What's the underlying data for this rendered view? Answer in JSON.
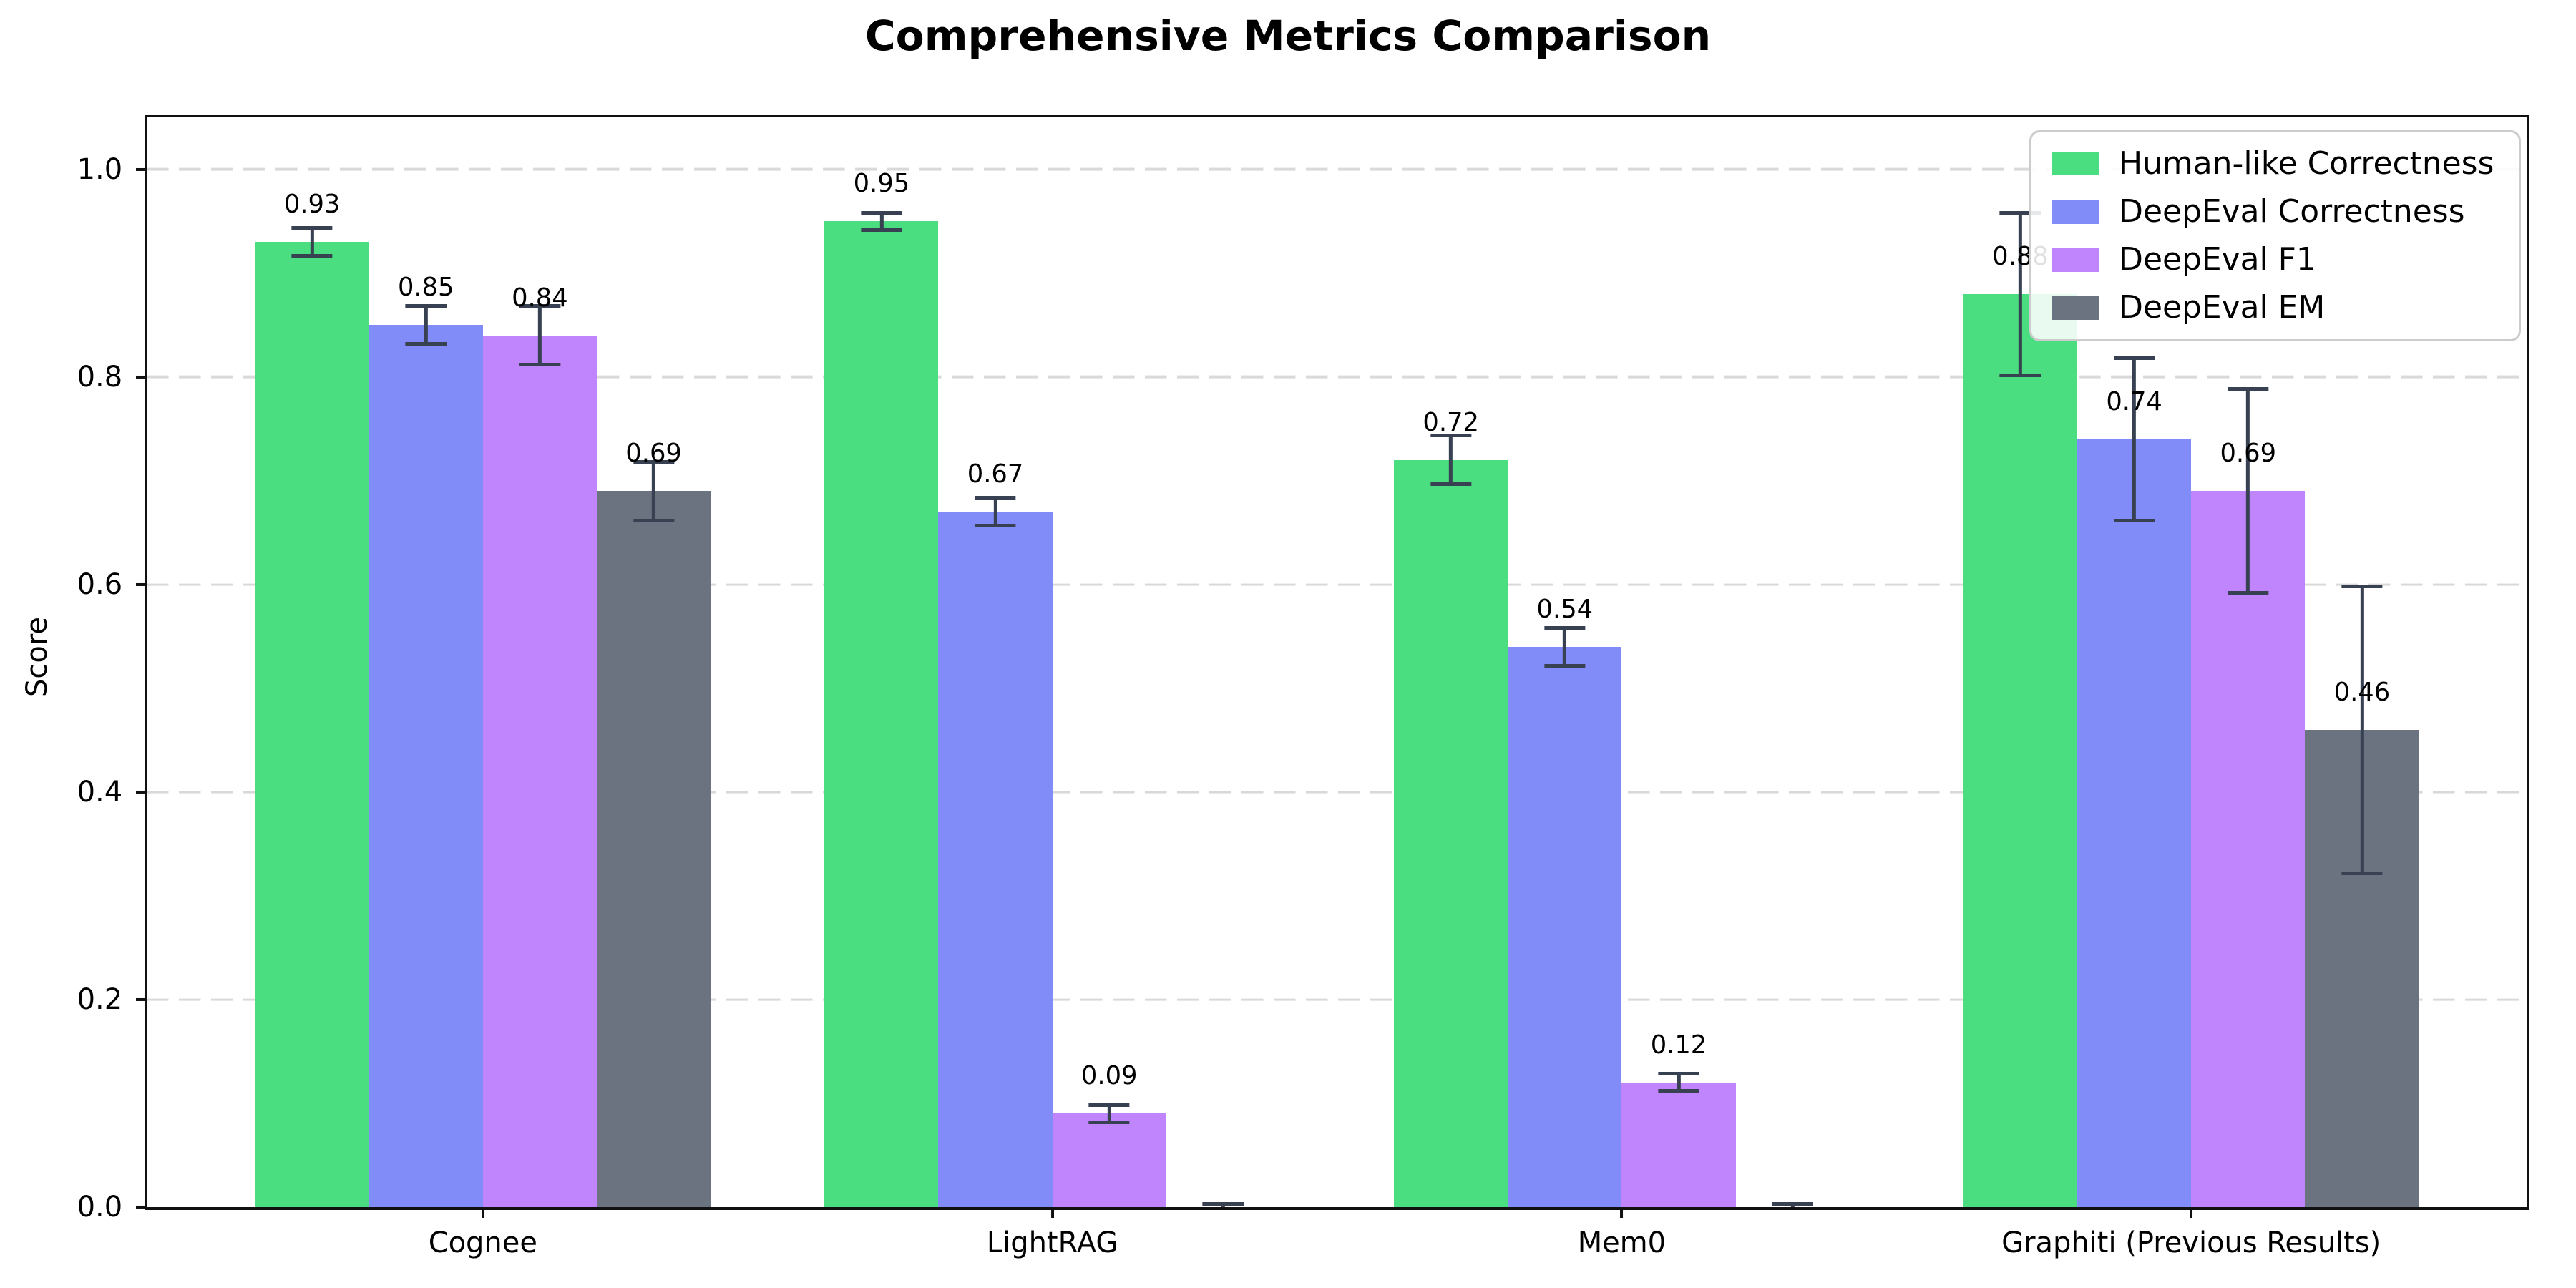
{
  "figure": {
    "title": "Comprehensive Metrics Comparison",
    "ylabel": "Score"
  },
  "chart_data": {
    "type": "bar",
    "title": "Comprehensive Metrics Comparison",
    "xlabel": "",
    "ylabel": "Score",
    "categories": [
      "Cognee",
      "LightRAG",
      "Mem0",
      "Graphiti (Previous Results)"
    ],
    "series": [
      {
        "name": "Human-like Correctness",
        "color": "#4ade80",
        "values": [
          0.93,
          0.95,
          0.72,
          0.88
        ],
        "errors": [
          0.015,
          0.01,
          0.025,
          0.08
        ]
      },
      {
        "name": "DeepEval Correctness",
        "color": "#818cf8",
        "values": [
          0.85,
          0.67,
          0.54,
          0.74
        ],
        "errors": [
          0.02,
          0.015,
          0.02,
          0.08
        ]
      },
      {
        "name": "DeepEval F1",
        "color": "#c084fc",
        "values": [
          0.84,
          0.09,
          0.12,
          0.69
        ],
        "errors": [
          0.03,
          0.01,
          0.01,
          0.1
        ]
      },
      {
        "name": "DeepEval EM",
        "color": "#6b7280",
        "values": [
          0.69,
          0.0,
          0.0,
          0.46
        ],
        "errors": [
          0.03,
          0.005,
          0.005,
          0.14
        ]
      }
    ],
    "value_labels": [
      [
        "0.93",
        "0.95",
        "0.72",
        "0.88"
      ],
      [
        "0.85",
        "0.67",
        "0.54",
        "0.74"
      ],
      [
        "0.84",
        "0.09",
        "0.12",
        "0.69"
      ],
      [
        "0.69",
        "",
        "",
        "0.46"
      ]
    ],
    "yticks": [
      "0.0",
      "0.2",
      "0.4",
      "0.6",
      "0.8",
      "1.0"
    ],
    "ylim": [
      0,
      1.05
    ],
    "xlim": [
      -0.59,
      3.59
    ],
    "bar_width": 0.2,
    "grid": "horizontal-dashed",
    "legend_position": "upper-right",
    "colors": {
      "errorbar": "#374151",
      "grid": "#d9d9d9",
      "spine": "#111111",
      "legend_border": "#cccccc",
      "text": "#000000"
    }
  }
}
